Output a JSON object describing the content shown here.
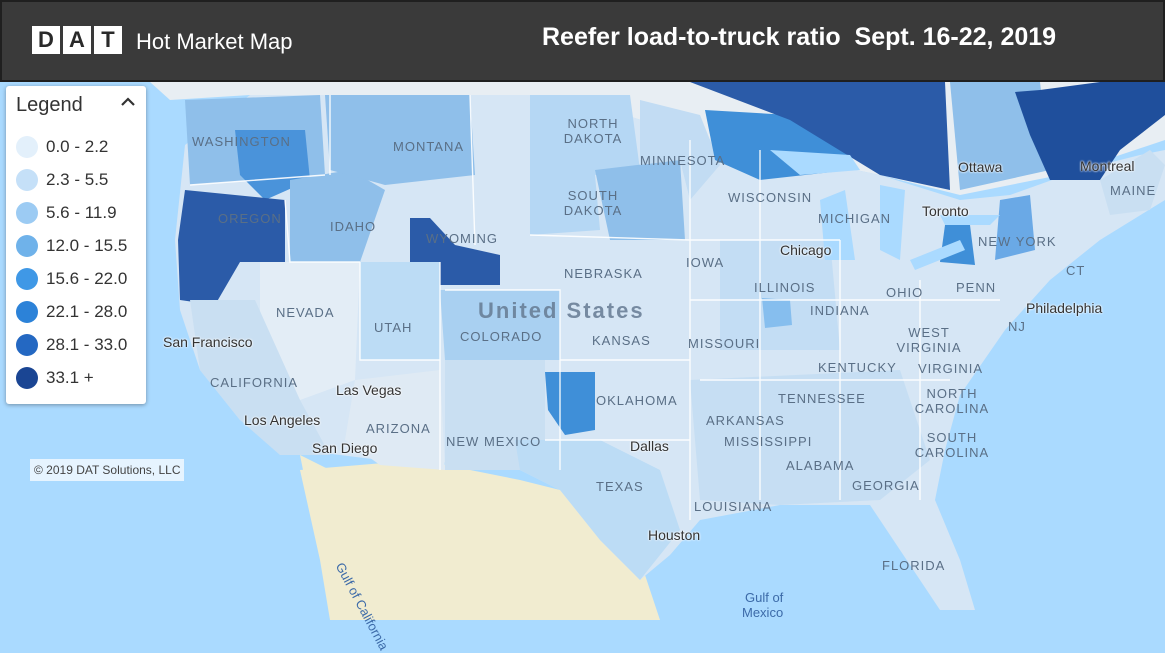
{
  "header": {
    "logo_letters": [
      "D",
      "A",
      "T"
    ],
    "app_name": "Hot Market Map",
    "map_title": "Reefer load-to-truck ratio  Sept. 16-22, 2019"
  },
  "legend": {
    "title": "Legend",
    "toggle_icon": "chevron-up-icon",
    "items": [
      {
        "label": "0.0 - 2.2",
        "color": "#e3f0fb"
      },
      {
        "label": "2.3 - 5.5",
        "color": "#c5e0f8"
      },
      {
        "label": "5.6 - 11.9",
        "color": "#9ccbf3"
      },
      {
        "label": "12.0 - 15.5",
        "color": "#6fb2ea"
      },
      {
        "label": "15.6 - 22.0",
        "color": "#3f98e6"
      },
      {
        "label": "22.1 - 28.0",
        "color": "#2c82d8"
      },
      {
        "label": "28.1 - 33.0",
        "color": "#2468c2"
      },
      {
        "label": "33.1 +",
        "color": "#1a4593"
      }
    ]
  },
  "copyright": "© 2019 DAT Solutions, LLC",
  "map_labels": {
    "country": "United States",
    "cities": {
      "san_francisco": "San Francisco",
      "los_angeles": "Los Angeles",
      "las_vegas": "Las Vegas",
      "san_diego": "San Diego",
      "chicago": "Chicago",
      "toronto": "Toronto",
      "ottawa": "Ottawa",
      "montreal": "Montreal",
      "philadelphia": "Philadelphia",
      "dallas": "Dallas",
      "houston": "Houston"
    },
    "states": {
      "washington": "WASHINGTON",
      "oregon": "OREGON",
      "california": "CALIFORNIA",
      "nevada": "NEVADA",
      "idaho": "IDAHO",
      "montana": "MONTANA",
      "wyoming": "WYOMING",
      "utah": "UTAH",
      "arizona": "ARIZONA",
      "colorado": "COLORADO",
      "new_mexico": "NEW MEXICO",
      "north_dakota": "NORTH DAKOTA",
      "south_dakota": "SOUTH DAKOTA",
      "nebraska": "NEBRASKA",
      "kansas": "KANSAS",
      "oklahoma": "OKLAHOMA",
      "texas": "TEXAS",
      "minnesota": "MINNESOTA",
      "iowa": "IOWA",
      "missouri": "MISSOURI",
      "arkansas": "ARKANSAS",
      "louisiana": "LOUISIANA",
      "wisconsin": "WISCONSIN",
      "michigan": "MICHIGAN",
      "illinois": "ILLINOIS",
      "indiana": "INDIANA",
      "ohio": "OHIO",
      "kentucky": "KENTUCKY",
      "tennessee": "TENNESSEE",
      "mississippi": "MISSISSIPPI",
      "alabama": "ALABAMA",
      "georgia": "GEORGIA",
      "florida": "FLORIDA",
      "south_carolina": "SOUTH CAROLINA",
      "north_carolina": "NORTH CAROLINA",
      "virginia": "VIRGINIA",
      "west_virginia": "WEST VIRGINIA",
      "pennsylvania": "PENN",
      "new_york": "NEW YORK",
      "new_jersey": "NJ",
      "maine": "MAINE",
      "connecticut": "CT"
    },
    "water": {
      "gulf_of_california": "Gulf of California",
      "gulf_of_mexico_1": "Gulf of",
      "gulf_of_mexico_2": "Mexico"
    }
  }
}
